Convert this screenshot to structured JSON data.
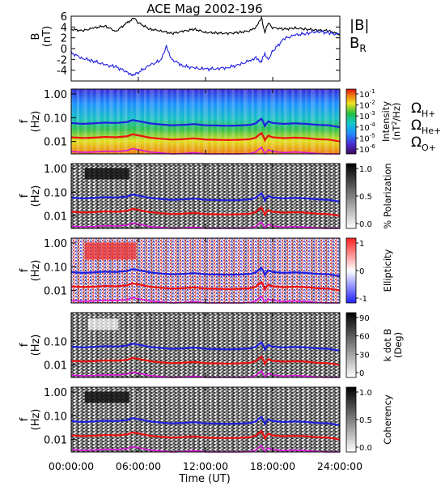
{
  "chart_data": {
    "type": "spectrogram",
    "title": "ACE Mag 2002-196",
    "x_axis": {
      "label": "Time (UT)",
      "range_hours": [
        0,
        24
      ],
      "tick_labels": [
        "00:00:00",
        "06:00:00",
        "12:00:00",
        "18:00:00",
        "24:00:00"
      ],
      "tick_hours": [
        0,
        6,
        12,
        18,
        24
      ]
    },
    "top_panel": {
      "ylabel": "B",
      "yunit": "(nT)",
      "ylim": [
        -6,
        6
      ],
      "ytick_labels": [
        "6",
        "4",
        "2",
        "0",
        "-2",
        "-4"
      ],
      "ytick_values": [
        6,
        4,
        2,
        0,
        -2,
        -4
      ],
      "legend": [
        {
          "label": "|B|",
          "color": "#000000"
        },
        {
          "label": "B",
          "sub": "R",
          "color": "#1f1fe0"
        }
      ],
      "series": [
        {
          "name": "|B|",
          "color": "#000000",
          "x": [
            0,
            1,
            2,
            3,
            4,
            5,
            5.6,
            6,
            7,
            8,
            9,
            10,
            11,
            12,
            13,
            14,
            15,
            16,
            16.5,
            17,
            17.3,
            17.6,
            18,
            19,
            20,
            21,
            22,
            23,
            24
          ],
          "y": [
            3.6,
            3.3,
            3.8,
            4.2,
            3.2,
            4.8,
            5.6,
            4.8,
            3.6,
            3.3,
            2.8,
            3.2,
            3.6,
            3.0,
            2.9,
            2.8,
            3.0,
            3.3,
            3.8,
            5.8,
            3.0,
            4.6,
            3.9,
            3.6,
            3.8,
            3.6,
            3.4,
            3.3,
            2.6
          ]
        },
        {
          "name": "B_R",
          "color": "#1f1fe0",
          "x": [
            0,
            1,
            2,
            3,
            4,
            5,
            5.5,
            6,
            7,
            8,
            8.5,
            9,
            10,
            11,
            12,
            13,
            14,
            15,
            16,
            16.5,
            17,
            17.3,
            17.6,
            18,
            19,
            20,
            21,
            22,
            23,
            24
          ],
          "y": [
            -0.8,
            -1.8,
            -2.3,
            -3.0,
            -3.4,
            -4.3,
            -4.8,
            -4.4,
            -3.1,
            -2.2,
            0.5,
            -2.0,
            -3.2,
            -3.6,
            -3.8,
            -3.7,
            -3.5,
            -3.0,
            -2.2,
            -1.5,
            -2.5,
            -0.8,
            -2.0,
            -0.5,
            1.8,
            2.5,
            2.8,
            3.2,
            2.9,
            2.6
          ]
        }
      ]
    },
    "spectrogram_panels": [
      {
        "name": "intensity",
        "ylabel": "f",
        "yunit": "(Hz)",
        "ytick_labels": [
          "1.00",
          "0.10",
          "0.01"
        ],
        "colorbar": {
          "colormap": "rainbow",
          "tick_labels": [
            "10^-1",
            "10^-2",
            "10^-3",
            "10^-4",
            "10^-5",
            "10^-6"
          ],
          "label": "Intensity",
          "unit": "(nT^2/Hz)"
        },
        "legend": [
          {
            "symbol": "Ω",
            "sub": "H+",
            "color": "#1f1fe0"
          },
          {
            "symbol": "Ω",
            "sub": "He+",
            "color": "#ee1111"
          },
          {
            "symbol": "Ω",
            "sub": "O+",
            "color": "#dd11dd"
          }
        ]
      },
      {
        "name": "polarization",
        "ylabel": "f",
        "yunit": "(Hz)",
        "ytick_labels": [
          "1.00",
          "0.10",
          "0.01"
        ],
        "colorbar": {
          "colormap": "gray",
          "tick_labels": [
            "1.0",
            "0.5",
            "0.0"
          ],
          "label": "% Polarization",
          "unit": ""
        }
      },
      {
        "name": "ellipticity",
        "ylabel": "f",
        "yunit": "(Hz)",
        "ytick_labels": [
          "1.00",
          "0.10",
          "0.01"
        ],
        "colorbar": {
          "colormap": "blue-white-red",
          "tick_labels": [
            "1",
            "0",
            "-1"
          ],
          "label": "Ellipticity",
          "unit": ""
        }
      },
      {
        "name": "k dot B",
        "ylabel": "f",
        "yunit": "(Hz)",
        "ytick_labels": [
          "0.10",
          "0.01"
        ],
        "colorbar": {
          "colormap": "gray",
          "tick_labels": [
            "90",
            "60",
            "30",
            "0"
          ],
          "label": "k dot B",
          "unit": "(Deg)"
        }
      },
      {
        "name": "coherency",
        "ylabel": "f",
        "yunit": "(Hz)",
        "ytick_labels": [
          "1.00",
          "0.10",
          "0.01"
        ],
        "colorbar": {
          "colormap": "gray",
          "tick_labels": [
            "1.0",
            "0.5",
            "0.0"
          ],
          "label": "Coherency",
          "unit": ""
        }
      }
    ],
    "gyrofrequency_lines_hz": {
      "x": [
        0,
        1,
        2,
        3,
        4,
        5,
        5.5,
        6,
        7,
        8,
        9,
        10,
        11,
        12,
        13,
        14,
        15,
        16,
        16.5,
        17,
        17.3,
        17.6,
        18,
        19,
        20,
        21,
        22,
        23,
        24
      ],
      "H+": [
        0.06,
        0.055,
        0.058,
        0.062,
        0.06,
        0.066,
        0.08,
        0.072,
        0.058,
        0.052,
        0.048,
        0.05,
        0.054,
        0.048,
        0.047,
        0.046,
        0.047,
        0.05,
        0.058,
        0.09,
        0.045,
        0.07,
        0.06,
        0.055,
        0.058,
        0.055,
        0.05,
        0.048,
        0.04
      ],
      "He+": [
        0.015,
        0.014,
        0.0145,
        0.0155,
        0.015,
        0.0165,
        0.02,
        0.018,
        0.0145,
        0.013,
        0.012,
        0.0125,
        0.0135,
        0.012,
        0.0118,
        0.0115,
        0.0118,
        0.0125,
        0.0145,
        0.0225,
        0.0112,
        0.0175,
        0.015,
        0.0138,
        0.0145,
        0.0138,
        0.0125,
        0.012,
        0.01
      ],
      "O+": [
        0.0038,
        0.0035,
        0.0036,
        0.0039,
        0.0038,
        0.0041,
        0.005,
        0.0045,
        0.0036,
        0.0033,
        0.003,
        0.0031,
        0.0034,
        0.003,
        0.003,
        0.0029,
        0.003,
        0.0031,
        0.0036,
        0.0056,
        0.0028,
        0.0044,
        0.0038,
        0.0034,
        0.0036,
        0.0034,
        0.0031,
        0.003,
        0.0025
      ]
    }
  }
}
